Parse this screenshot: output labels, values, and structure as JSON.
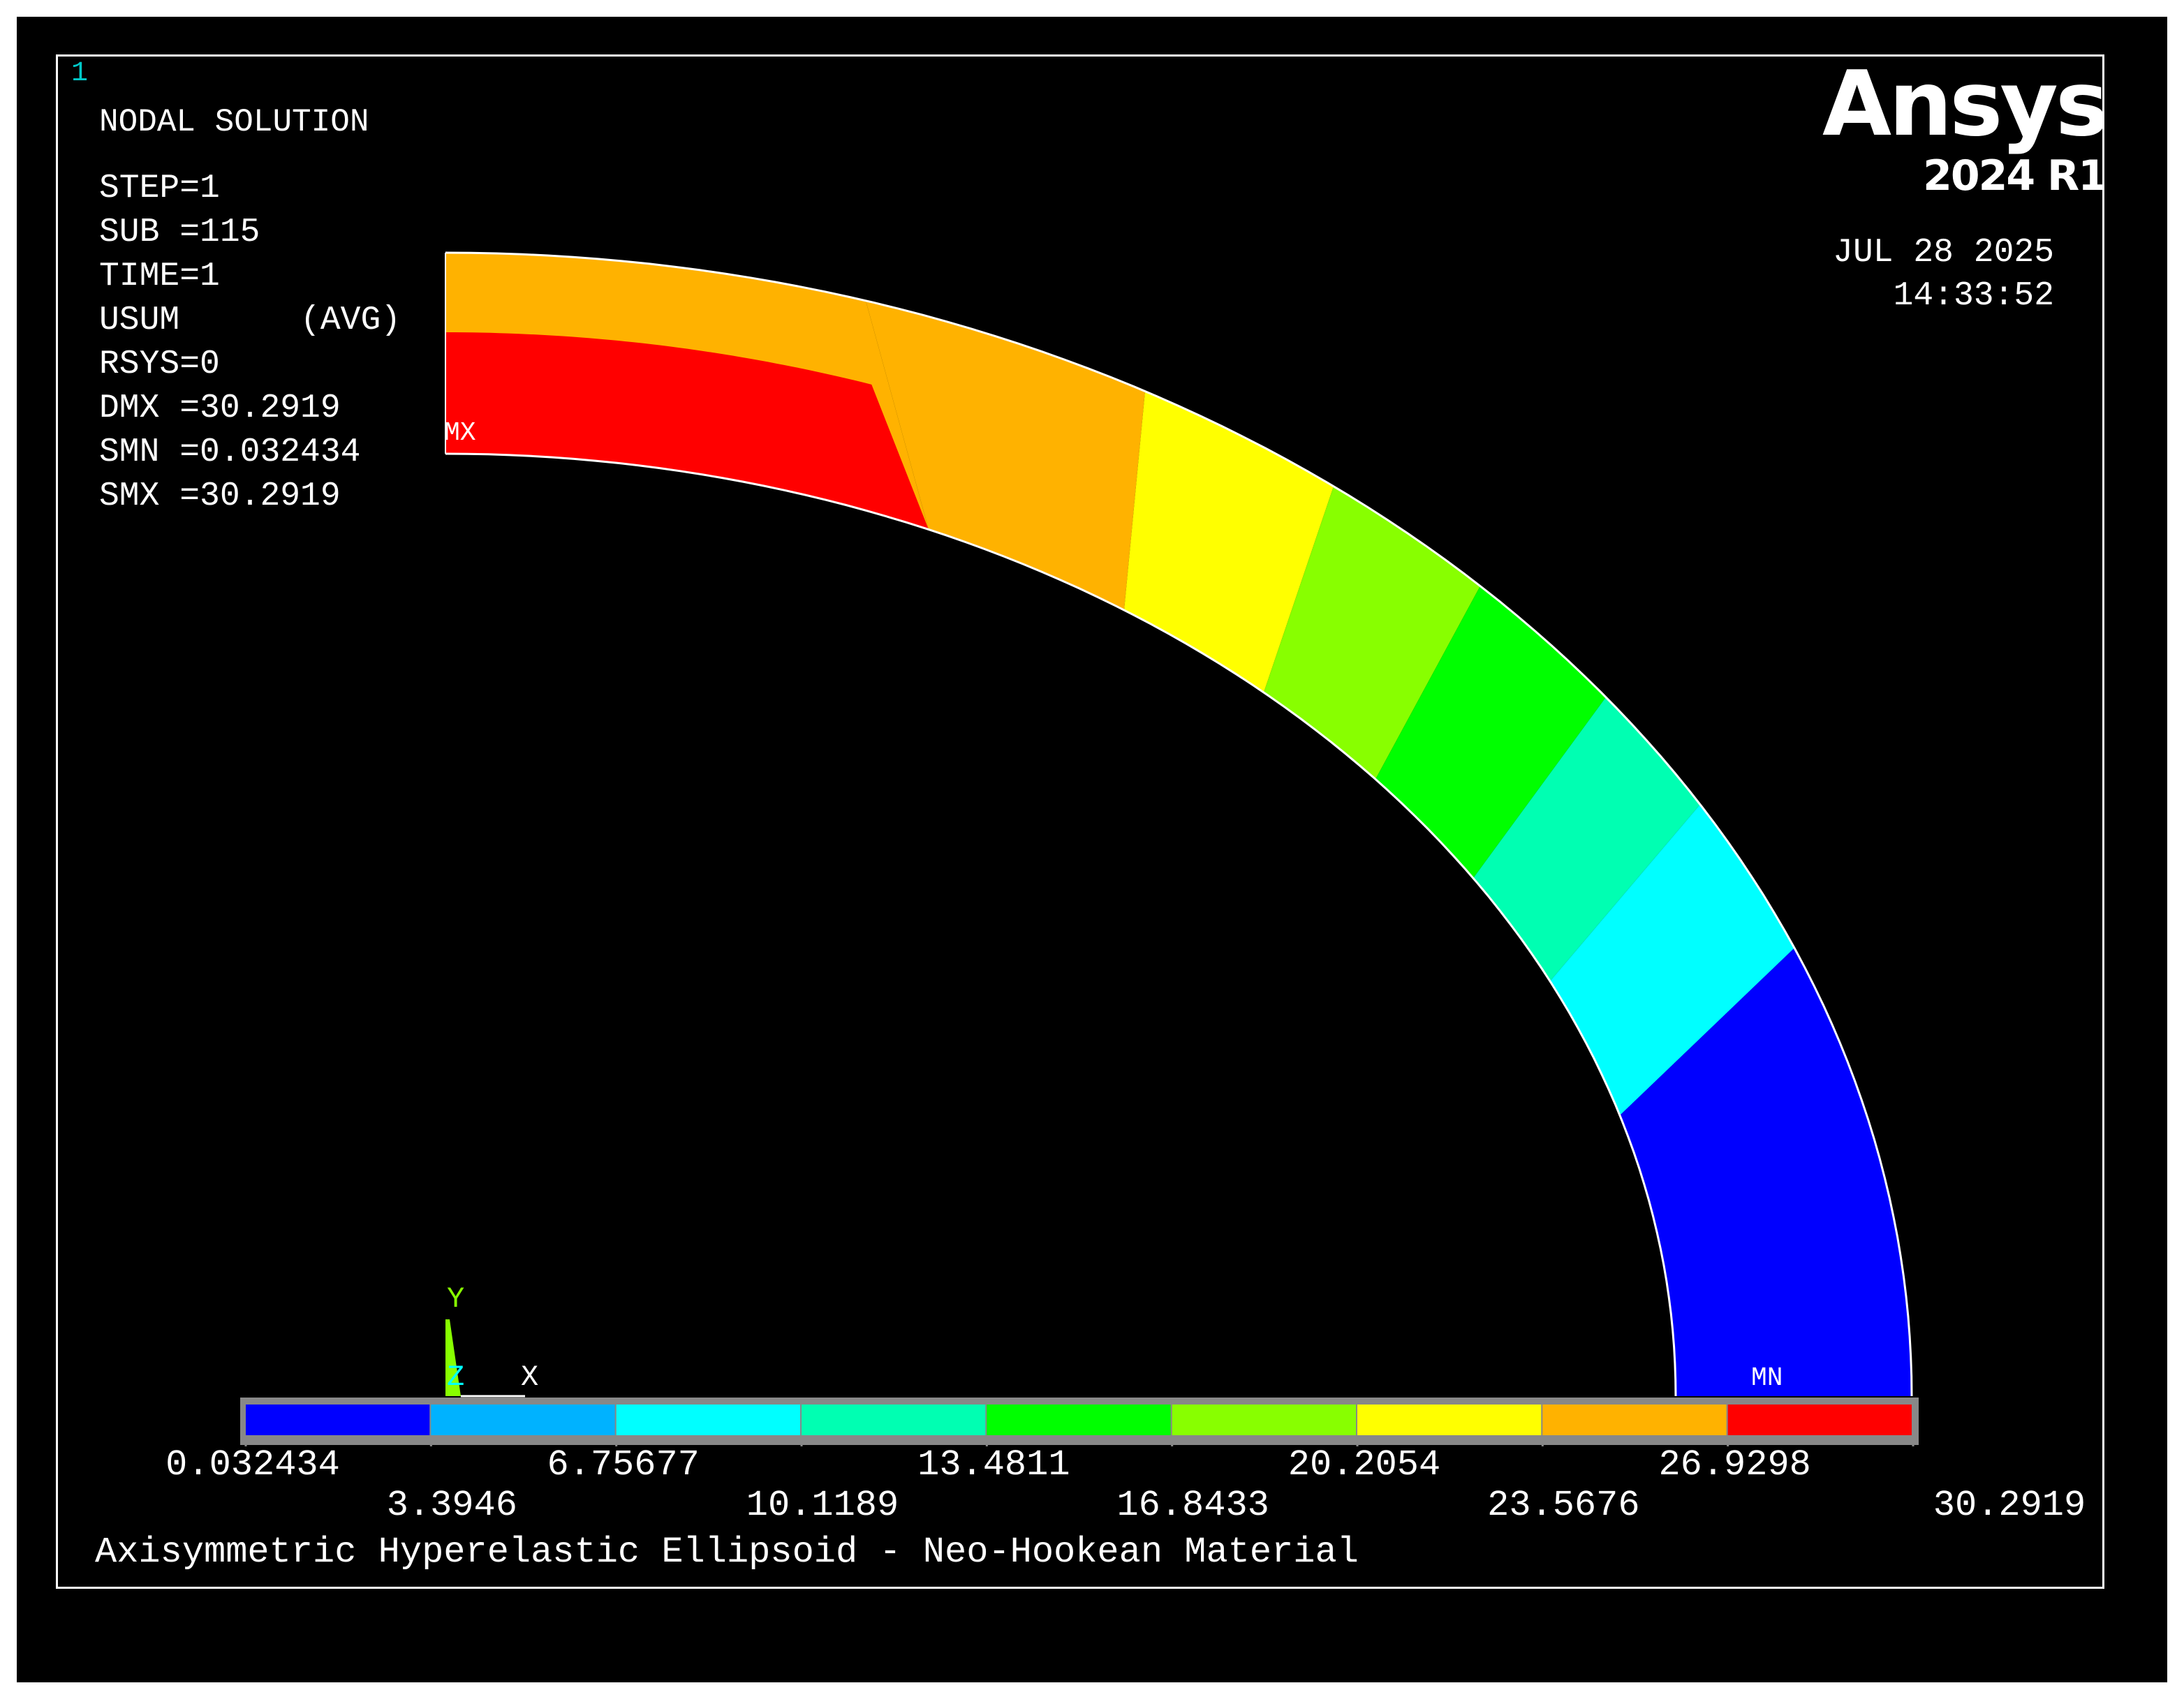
{
  "window": {
    "number": "1",
    "title": "NODAL SOLUTION",
    "footer_title": "Axisymmetric Hyperelastic Ellipsoid - Neo-Hookean Material"
  },
  "info": {
    "step": "STEP=1",
    "sub": "SUB =115",
    "time": "TIME=1",
    "usum": "USUM      (AVG)",
    "rsys": "RSYS=0",
    "dmx": "DMX =30.2919",
    "smn": "SMN =0.032434",
    "smx": "SMX =30.2919"
  },
  "branding": {
    "name": "Ansys",
    "version": "2024 R1",
    "date": "JUL 28 2025",
    "time": "14:33:52"
  },
  "markers": {
    "max": "MX",
    "min": "MN"
  },
  "triad": {
    "y": "Y",
    "z": "Z",
    "x": "X"
  },
  "legend": {
    "labels_top": [
      "0.032434",
      "6.75677",
      "13.4811",
      "20.2054",
      "26.9298"
    ],
    "labels_bottom": [
      "3.3946",
      "10.1189",
      "16.8433",
      "23.5676",
      "30.2919"
    ],
    "colors": [
      "#0000ff",
      "#00b2ff",
      "#00ffff",
      "#00ffb2",
      "#00ff00",
      "#88ff00",
      "#ffff00",
      "#ffb200",
      "#ff0000"
    ],
    "min": 0.032434,
    "max": 30.2919
  }
}
